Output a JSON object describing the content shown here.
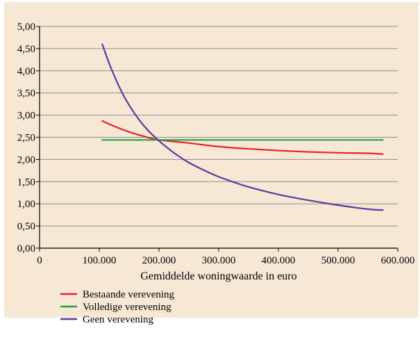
{
  "chart_data": {
    "type": "line",
    "title": "",
    "xlabel": "Gemiddelde woningwaarde in euro",
    "ylabel": "",
    "xlim": [
      0,
      600000
    ],
    "ylim": [
      0,
      5
    ],
    "grid": true,
    "legend_position": "bottom-left",
    "x_ticks": [
      "0",
      "100.000",
      "200.000",
      "300.000",
      "400.000",
      "500.000",
      "600.000"
    ],
    "y_ticks": [
      "0,00",
      "0,50",
      "1,00",
      "1,50",
      "2,00",
      "2,50",
      "3,00",
      "3,50",
      "4,00",
      "4,50",
      "5,00"
    ],
    "colors": {
      "background": "#f6e8d5",
      "grid": "#8c8c8c",
      "axis": "#000000"
    },
    "series": [
      {
        "name": "Bestaande verevening",
        "color": "#e4252a",
        "x": [
          105000,
          125000,
          150000,
          175000,
          200000,
          250000,
          300000,
          350000,
          400000,
          450000,
          500000,
          550000,
          575000
        ],
        "y": [
          2.87,
          2.75,
          2.62,
          2.52,
          2.44,
          2.37,
          2.29,
          2.24,
          2.2,
          2.17,
          2.15,
          2.14,
          2.12
        ]
      },
      {
        "name": "Volledige verevening",
        "color": "#21a04b",
        "x": [
          105000,
          575000
        ],
        "y": [
          2.44,
          2.44
        ]
      },
      {
        "name": "Geen verevening",
        "color": "#5b3a9a",
        "x": [
          105000,
          120000,
          140000,
          160000,
          180000,
          200000,
          225000,
          250000,
          275000,
          300000,
          325000,
          350000,
          400000,
          450000,
          500000,
          550000,
          575000
        ],
        "y": [
          4.6,
          4.05,
          3.46,
          3.02,
          2.68,
          2.42,
          2.15,
          1.93,
          1.76,
          1.61,
          1.49,
          1.38,
          1.21,
          1.08,
          0.97,
          0.88,
          0.86
        ]
      }
    ]
  }
}
